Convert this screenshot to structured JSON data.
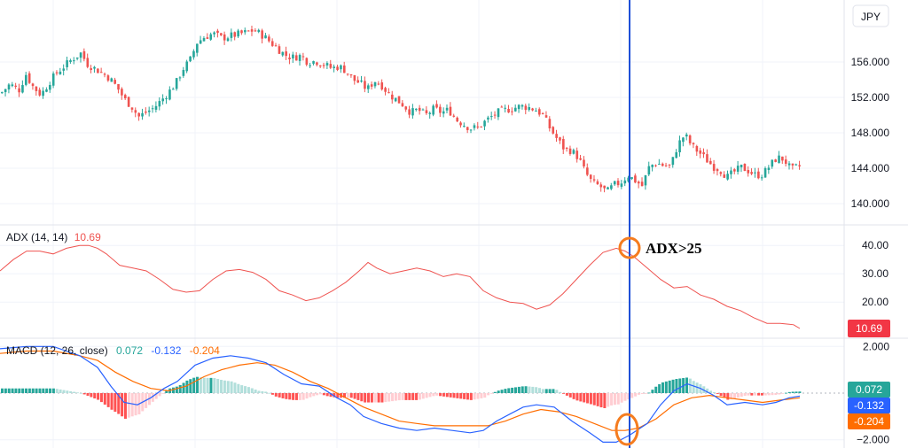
{
  "currency_label": "JPY",
  "colors": {
    "up": "#26a69a",
    "down": "#ef5350",
    "adx_line": "#ef5350",
    "macd_line": "#2962ff",
    "signal_line": "#ff6d00",
    "hist_up_strong": "#26a69a",
    "hist_up_weak": "#b2dfdb",
    "hist_down_strong": "#ff5252",
    "hist_down_weak": "#ffcdd2",
    "marker": "#1e4fd8",
    "circle": "#f57c1f",
    "grid": "#f0f3fa"
  },
  "chart_data": [
    {
      "type": "candlestick",
      "title": "",
      "ylabel": "JPY",
      "ylim": [
        138.4,
        161.8
      ],
      "yticks": [
        140,
        144,
        148,
        152,
        156
      ],
      "ytick_labels": [
        "140.000",
        "144.000",
        "148.000",
        "152.000",
        "156.000"
      ],
      "close_path": [
        [
          0,
          152.5
        ],
        [
          10,
          153.5
        ],
        [
          20,
          152.8
        ],
        [
          28,
          154.6
        ],
        [
          36,
          153.2
        ],
        [
          45,
          152.3
        ],
        [
          55,
          153.8
        ],
        [
          63,
          154.8
        ],
        [
          72,
          155.6
        ],
        [
          80,
          156.3
        ],
        [
          90,
          157.0
        ],
        [
          97,
          155.8
        ],
        [
          105,
          155.3
        ],
        [
          113,
          154.8
        ],
        [
          122,
          154.2
        ],
        [
          131,
          153.1
        ],
        [
          139,
          151.8
        ],
        [
          147,
          151.0
        ],
        [
          155,
          149.8
        ],
        [
          163,
          150.3
        ],
        [
          172,
          150.8
        ],
        [
          180,
          151.6
        ],
        [
          189,
          152.6
        ],
        [
          197,
          153.6
        ],
        [
          205,
          155.2
        ],
        [
          213,
          156.2
        ],
        [
          221,
          158.2
        ],
        [
          229,
          158.8
        ],
        [
          239,
          159.2
        ],
        [
          249,
          158.7
        ],
        [
          257,
          158.9
        ],
        [
          266,
          159.1
        ],
        [
          275,
          159.3
        ],
        [
          285,
          159.6
        ],
        [
          295,
          159.0
        ],
        [
          303,
          158.3
        ],
        [
          311,
          157.6
        ],
        [
          320,
          156.8
        ],
        [
          328,
          156.5
        ],
        [
          338,
          156.7
        ],
        [
          346,
          156.0
        ],
        [
          355,
          156.1
        ],
        [
          364,
          155.7
        ],
        [
          373,
          155.3
        ],
        [
          381,
          155.5
        ],
        [
          389,
          155.0
        ],
        [
          397,
          154.0
        ],
        [
          405,
          153.6
        ],
        [
          413,
          152.9
        ],
        [
          421,
          153.9
        ],
        [
          429,
          153.4
        ],
        [
          437,
          152.4
        ],
        [
          445,
          151.8
        ],
        [
          453,
          151.2
        ],
        [
          462,
          150.3
        ],
        [
          470,
          150.6
        ],
        [
          479,
          150.0
        ],
        [
          488,
          150.7
        ],
        [
          497,
          150.3
        ],
        [
          505,
          150.6
        ],
        [
          513,
          149.5
        ],
        [
          521,
          149.0
        ],
        [
          529,
          148.5
        ],
        [
          538,
          148.6
        ],
        [
          546,
          149.3
        ],
        [
          554,
          149.9
        ],
        [
          562,
          150.4
        ],
        [
          570,
          150.6
        ],
        [
          578,
          150.8
        ],
        [
          586,
          151.0
        ],
        [
          594,
          150.9
        ],
        [
          603,
          150.6
        ],
        [
          611,
          150.0
        ],
        [
          619,
          148.5
        ],
        [
          627,
          147.3
        ],
        [
          635,
          146.2
        ],
        [
          643,
          146.0
        ],
        [
          651,
          145.2
        ],
        [
          659,
          143.5
        ],
        [
          667,
          142.3
        ],
        [
          675,
          142.0
        ],
        [
          683,
          141.3
        ],
        [
          691,
          142.1
        ],
        [
          699,
          142.4
        ],
        [
          707,
          143.2
        ],
        [
          715,
          142.6
        ],
        [
          723,
          142.0
        ],
        [
          731,
          144.2
        ],
        [
          739,
          144.6
        ],
        [
          747,
          144.3
        ],
        [
          755,
          144.2
        ],
        [
          763,
          146.6
        ],
        [
          771,
          147.8
        ],
        [
          779,
          146.5
        ],
        [
          787,
          145.8
        ],
        [
          795,
          145.0
        ],
        [
          803,
          144.2
        ],
        [
          811,
          143.8
        ],
        [
          819,
          143.0
        ],
        [
          827,
          143.6
        ],
        [
          835,
          144.1
        ],
        [
          843,
          143.7
        ],
        [
          851,
          143.2
        ],
        [
          859,
          143.3
        ],
        [
          867,
          144.3
        ],
        [
          875,
          145.2
        ],
        [
          883,
          145.0
        ],
        [
          891,
          143.8
        ],
        [
          899,
          144.2
        ]
      ],
      "last_close_x": 902
    },
    {
      "type": "line",
      "title": "ADX (14, 14)",
      "series": [
        {
          "name": "ADX",
          "last_value": "10.69"
        }
      ],
      "ylim": [
        8.5,
        46
      ],
      "yticks": [
        20,
        30,
        40
      ],
      "ytick_labels": [
        "20.00",
        "30.00",
        "40.00"
      ],
      "last_value_label": "10.69",
      "adx_points": [
        [
          0,
          31
        ],
        [
          15,
          35
        ],
        [
          30,
          38
        ],
        [
          45,
          38
        ],
        [
          60,
          37
        ],
        [
          75,
          39
        ],
        [
          90,
          40
        ],
        [
          100,
          40
        ],
        [
          110,
          39
        ],
        [
          120,
          37
        ],
        [
          135,
          33
        ],
        [
          150,
          32
        ],
        [
          165,
          31
        ],
        [
          180,
          28
        ],
        [
          195,
          24.5
        ],
        [
          210,
          23.5
        ],
        [
          225,
          24
        ],
        [
          240,
          28
        ],
        [
          255,
          31
        ],
        [
          270,
          31.5
        ],
        [
          285,
          30.5
        ],
        [
          300,
          28
        ],
        [
          315,
          24
        ],
        [
          330,
          22.5
        ],
        [
          345,
          20.5
        ],
        [
          360,
          21.5
        ],
        [
          375,
          24
        ],
        [
          390,
          27
        ],
        [
          405,
          31
        ],
        [
          415,
          34
        ],
        [
          425,
          32
        ],
        [
          440,
          30
        ],
        [
          455,
          31
        ],
        [
          470,
          32
        ],
        [
          485,
          31
        ],
        [
          500,
          29
        ],
        [
          515,
          30
        ],
        [
          530,
          29
        ],
        [
          545,
          24
        ],
        [
          560,
          21.5
        ],
        [
          575,
          20
        ],
        [
          590,
          19.5
        ],
        [
          605,
          17.5
        ],
        [
          620,
          19
        ],
        [
          635,
          23
        ],
        [
          650,
          28
        ],
        [
          665,
          33
        ],
        [
          680,
          37.5
        ],
        [
          695,
          39
        ],
        [
          705,
          38
        ],
        [
          715,
          36
        ],
        [
          730,
          32
        ],
        [
          745,
          28
        ],
        [
          760,
          25
        ],
        [
          775,
          25.5
        ],
        [
          790,
          22.5
        ],
        [
          805,
          21
        ],
        [
          820,
          18.5
        ],
        [
          835,
          17
        ],
        [
          850,
          14.5
        ],
        [
          865,
          12.5
        ],
        [
          880,
          12.5
        ],
        [
          895,
          12
        ],
        [
          902,
          10.7
        ]
      ]
    },
    {
      "type": "line",
      "title": "MACD (12, 26, close)",
      "series": [
        {
          "name": "Histogram",
          "last_value": "0.072"
        },
        {
          "name": "MACD",
          "last_value": "-0.132"
        },
        {
          "name": "Signal",
          "last_value": "-0.204"
        }
      ],
      "ylim": [
        -2.2,
        2.2
      ],
      "yticks": [
        -2,
        2
      ],
      "ytick_labels": [
        "−2.000",
        "2.000"
      ],
      "macd_points": [
        [
          0,
          1.9
        ],
        [
          30,
          2.0
        ],
        [
          60,
          2.0
        ],
        [
          90,
          1.6
        ],
        [
          110,
          1.1
        ],
        [
          125,
          0.3
        ],
        [
          140,
          -0.4
        ],
        [
          155,
          -0.5
        ],
        [
          170,
          -0.2
        ],
        [
          185,
          0.2
        ],
        [
          200,
          0.5
        ],
        [
          220,
          1.2
        ],
        [
          240,
          1.5
        ],
        [
          260,
          1.6
        ],
        [
          280,
          1.5
        ],
        [
          300,
          1.3
        ],
        [
          320,
          0.8
        ],
        [
          340,
          0.4
        ],
        [
          360,
          0.3
        ],
        [
          380,
          -0.2
        ],
        [
          395,
          -0.5
        ],
        [
          410,
          -1.0
        ],
        [
          430,
          -1.3
        ],
        [
          450,
          -1.5
        ],
        [
          470,
          -1.6
        ],
        [
          490,
          -1.5
        ],
        [
          510,
          -1.6
        ],
        [
          530,
          -1.7
        ],
        [
          545,
          -1.6
        ],
        [
          560,
          -1.2
        ],
        [
          575,
          -0.9
        ],
        [
          590,
          -0.6
        ],
        [
          605,
          -0.5
        ],
        [
          625,
          -0.6
        ],
        [
          645,
          -1.2
        ],
        [
          665,
          -1.7
        ],
        [
          680,
          -2.1
        ],
        [
          695,
          -2.1
        ],
        [
          710,
          -1.8
        ],
        [
          730,
          -1.3
        ],
        [
          745,
          -0.5
        ],
        [
          760,
          0.1
        ],
        [
          775,
          0.4
        ],
        [
          790,
          0.2
        ],
        [
          805,
          -0.1
        ],
        [
          820,
          -0.5
        ],
        [
          840,
          -0.4
        ],
        [
          860,
          -0.5
        ],
        [
          875,
          -0.4
        ],
        [
          890,
          -0.2
        ],
        [
          902,
          -0.13
        ]
      ],
      "signal_points": [
        [
          0,
          1.7
        ],
        [
          30,
          1.8
        ],
        [
          60,
          1.8
        ],
        [
          90,
          1.6
        ],
        [
          110,
          1.4
        ],
        [
          130,
          0.9
        ],
        [
          150,
          0.5
        ],
        [
          170,
          0.2
        ],
        [
          190,
          0.1
        ],
        [
          210,
          0.3
        ],
        [
          230,
          0.7
        ],
        [
          250,
          1.0
        ],
        [
          270,
          1.2
        ],
        [
          290,
          1.3
        ],
        [
          310,
          1.2
        ],
        [
          330,
          0.9
        ],
        [
          350,
          0.5
        ],
        [
          370,
          0.2
        ],
        [
          390,
          -0.2
        ],
        [
          410,
          -0.6
        ],
        [
          430,
          -0.9
        ],
        [
          450,
          -1.2
        ],
        [
          470,
          -1.3
        ],
        [
          490,
          -1.4
        ],
        [
          510,
          -1.4
        ],
        [
          530,
          -1.4
        ],
        [
          550,
          -1.4
        ],
        [
          570,
          -1.2
        ],
        [
          590,
          -0.9
        ],
        [
          610,
          -0.7
        ],
        [
          630,
          -0.8
        ],
        [
          650,
          -1.0
        ],
        [
          670,
          -1.3
        ],
        [
          690,
          -1.6
        ],
        [
          705,
          -1.6
        ],
        [
          720,
          -1.5
        ],
        [
          740,
          -1.1
        ],
        [
          760,
          -0.5
        ],
        [
          780,
          -0.2
        ],
        [
          800,
          -0.1
        ],
        [
          820,
          -0.2
        ],
        [
          840,
          -0.3
        ],
        [
          860,
          -0.4
        ],
        [
          880,
          -0.3
        ],
        [
          902,
          -0.2
        ]
      ]
    }
  ],
  "annotation_text": "ADX>25"
}
